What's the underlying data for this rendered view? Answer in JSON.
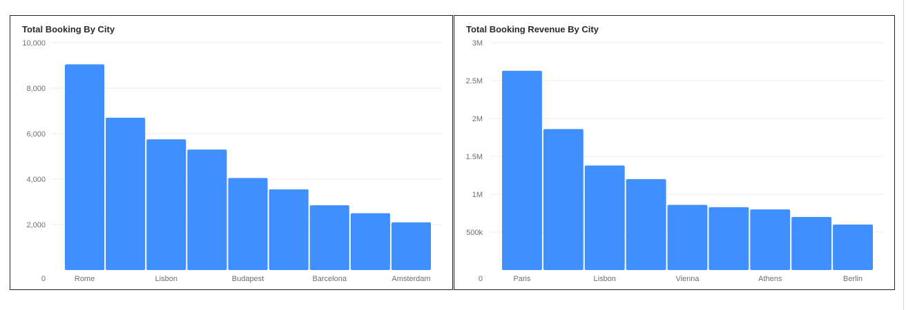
{
  "chart_data": [
    {
      "type": "bar",
      "title": "Total Booking By City",
      "xlabel": "",
      "ylabel": "",
      "ylim": [
        0,
        10000
      ],
      "yticks": [
        0,
        2000,
        4000,
        6000,
        8000,
        10000
      ],
      "ytick_labels": [
        "0",
        "2,000",
        "4,000",
        "6,000",
        "8,000",
        "10,000"
      ],
      "categories": [
        "Rome",
        "",
        "Lisbon",
        "",
        "Budapest",
        "",
        "Barcelona",
        "",
        "Amsterdam"
      ],
      "values": [
        9050,
        6700,
        5750,
        5300,
        4050,
        3550,
        2850,
        2500,
        2100
      ],
      "color": "#3f8ffe",
      "grid": true,
      "legend": "none"
    },
    {
      "type": "bar",
      "title": "Total Booking Revenue By City",
      "xlabel": "",
      "ylabel": "",
      "ylim": [
        0,
        3000000
      ],
      "yticks": [
        0,
        500000,
        1000000,
        1500000,
        2000000,
        2500000,
        3000000
      ],
      "ytick_labels": [
        "0",
        "500k",
        "1M",
        "1.5M",
        "2M",
        "2.5M",
        "3M"
      ],
      "categories": [
        "Paris",
        "",
        "Lisbon",
        "",
        "Vienna",
        "",
        "Athens",
        "",
        "Berlin"
      ],
      "values": [
        2630000,
        1860000,
        1380000,
        1200000,
        860000,
        830000,
        800000,
        700000,
        600000
      ],
      "color": "#3f8ffe",
      "grid": true,
      "legend": "none"
    }
  ]
}
